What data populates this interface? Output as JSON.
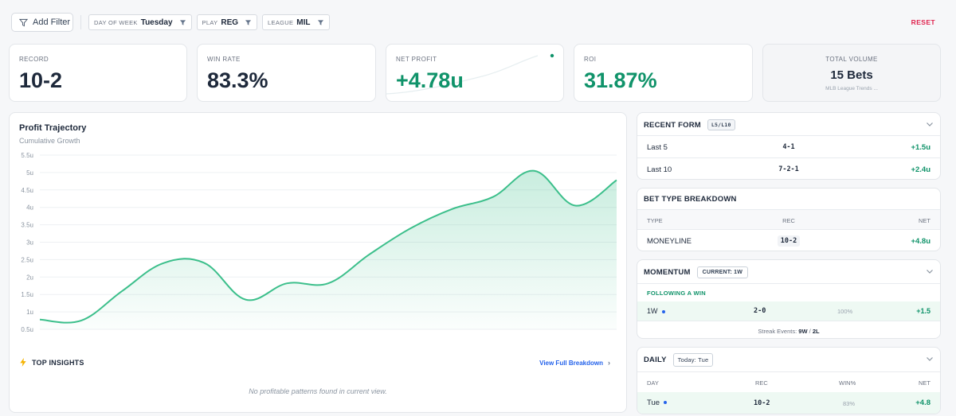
{
  "filters": {
    "add_filter_label": "Add Filter",
    "chips": [
      {
        "label": "DAY OF WEEK",
        "value": "Tuesday"
      },
      {
        "label": "PLAY",
        "value": "REG"
      },
      {
        "label": "LEAGUE",
        "value": "MIL"
      }
    ],
    "reset_label": "RESET"
  },
  "stats": {
    "record": {
      "title": "RECORD",
      "value": "10-2"
    },
    "win_rate": {
      "title": "WIN RATE",
      "value": "83.3%"
    },
    "net_profit": {
      "title": "NET PROFIT",
      "value": "+4.78u"
    },
    "roi": {
      "title": "ROI",
      "value": "31.87%"
    },
    "total_volume": {
      "title": "TOTAL VOLUME",
      "value": "15 Bets",
      "subtitle": "MLB League Trends ..."
    }
  },
  "trajectory": {
    "title": "Profit Trajectory",
    "subtitle": "Cumulative Growth",
    "insights_title": "TOP INSIGHTS",
    "view_link": "View Full Breakdown",
    "empty_text": "No profitable patterns found in current view."
  },
  "chart_data": {
    "type": "area",
    "title": "Profit Trajectory",
    "subtitle": "Cumulative Growth",
    "ylim": [
      0.5,
      5.5
    ],
    "yticks": [
      "5.5u",
      "5u",
      "4.5u",
      "4u",
      "3.5u",
      "3u",
      "2.5u",
      "2u",
      "1.5u",
      "1u",
      "0.5u"
    ],
    "ytick_values": [
      5.5,
      5,
      4.5,
      4,
      3.5,
      3,
      2.5,
      2,
      1.5,
      1,
      0.5
    ],
    "x": [
      0,
      1,
      2,
      3,
      4,
      5,
      6,
      7,
      8,
      9,
      10,
      11,
      12,
      13,
      14
    ],
    "values": [
      0.78,
      0.75,
      1.6,
      2.4,
      2.4,
      1.35,
      1.82,
      1.82,
      2.65,
      3.4,
      3.95,
      4.3,
      5.05,
      4.05,
      4.78
    ],
    "color": "#3cbf8b",
    "grid": true
  },
  "recent_form": {
    "title": "RECENT FORM",
    "tag": "L5/L10",
    "rows": [
      {
        "label": "Last 5",
        "record": "4-1",
        "net": "+1.5u"
      },
      {
        "label": "Last 10",
        "record": "7-2-1",
        "net": "+2.4u"
      }
    ]
  },
  "bet_type": {
    "title": "BET TYPE BREAKDOWN",
    "columns": [
      "TYPE",
      "REC",
      "NET"
    ],
    "rows": [
      {
        "type": "MONEYLINE",
        "rec": "10-2",
        "net": "+4.8u"
      }
    ]
  },
  "momentum": {
    "title": "MOMENTUM",
    "tag": "CURRENT: 1W",
    "section_label": "FOLLOWING A WIN",
    "row": {
      "label": "1W",
      "rec": "2-0",
      "pct": "100%",
      "net": "+1.5"
    },
    "streak_prefix": "Streak Events:",
    "streak_w": "9W",
    "streak_sep": "/",
    "streak_l": "2L"
  },
  "daily": {
    "title": "DAILY",
    "tag": "Today: Tue",
    "columns": [
      "DAY",
      "REC",
      "WIN%",
      "NET"
    ],
    "row": {
      "day": "Tue",
      "rec": "10-2",
      "win": "83%",
      "net": "+4.8"
    }
  },
  "colors": {
    "accent_green": "#10936a",
    "reset_red": "#e0244f",
    "link_blue": "#2563eb"
  }
}
